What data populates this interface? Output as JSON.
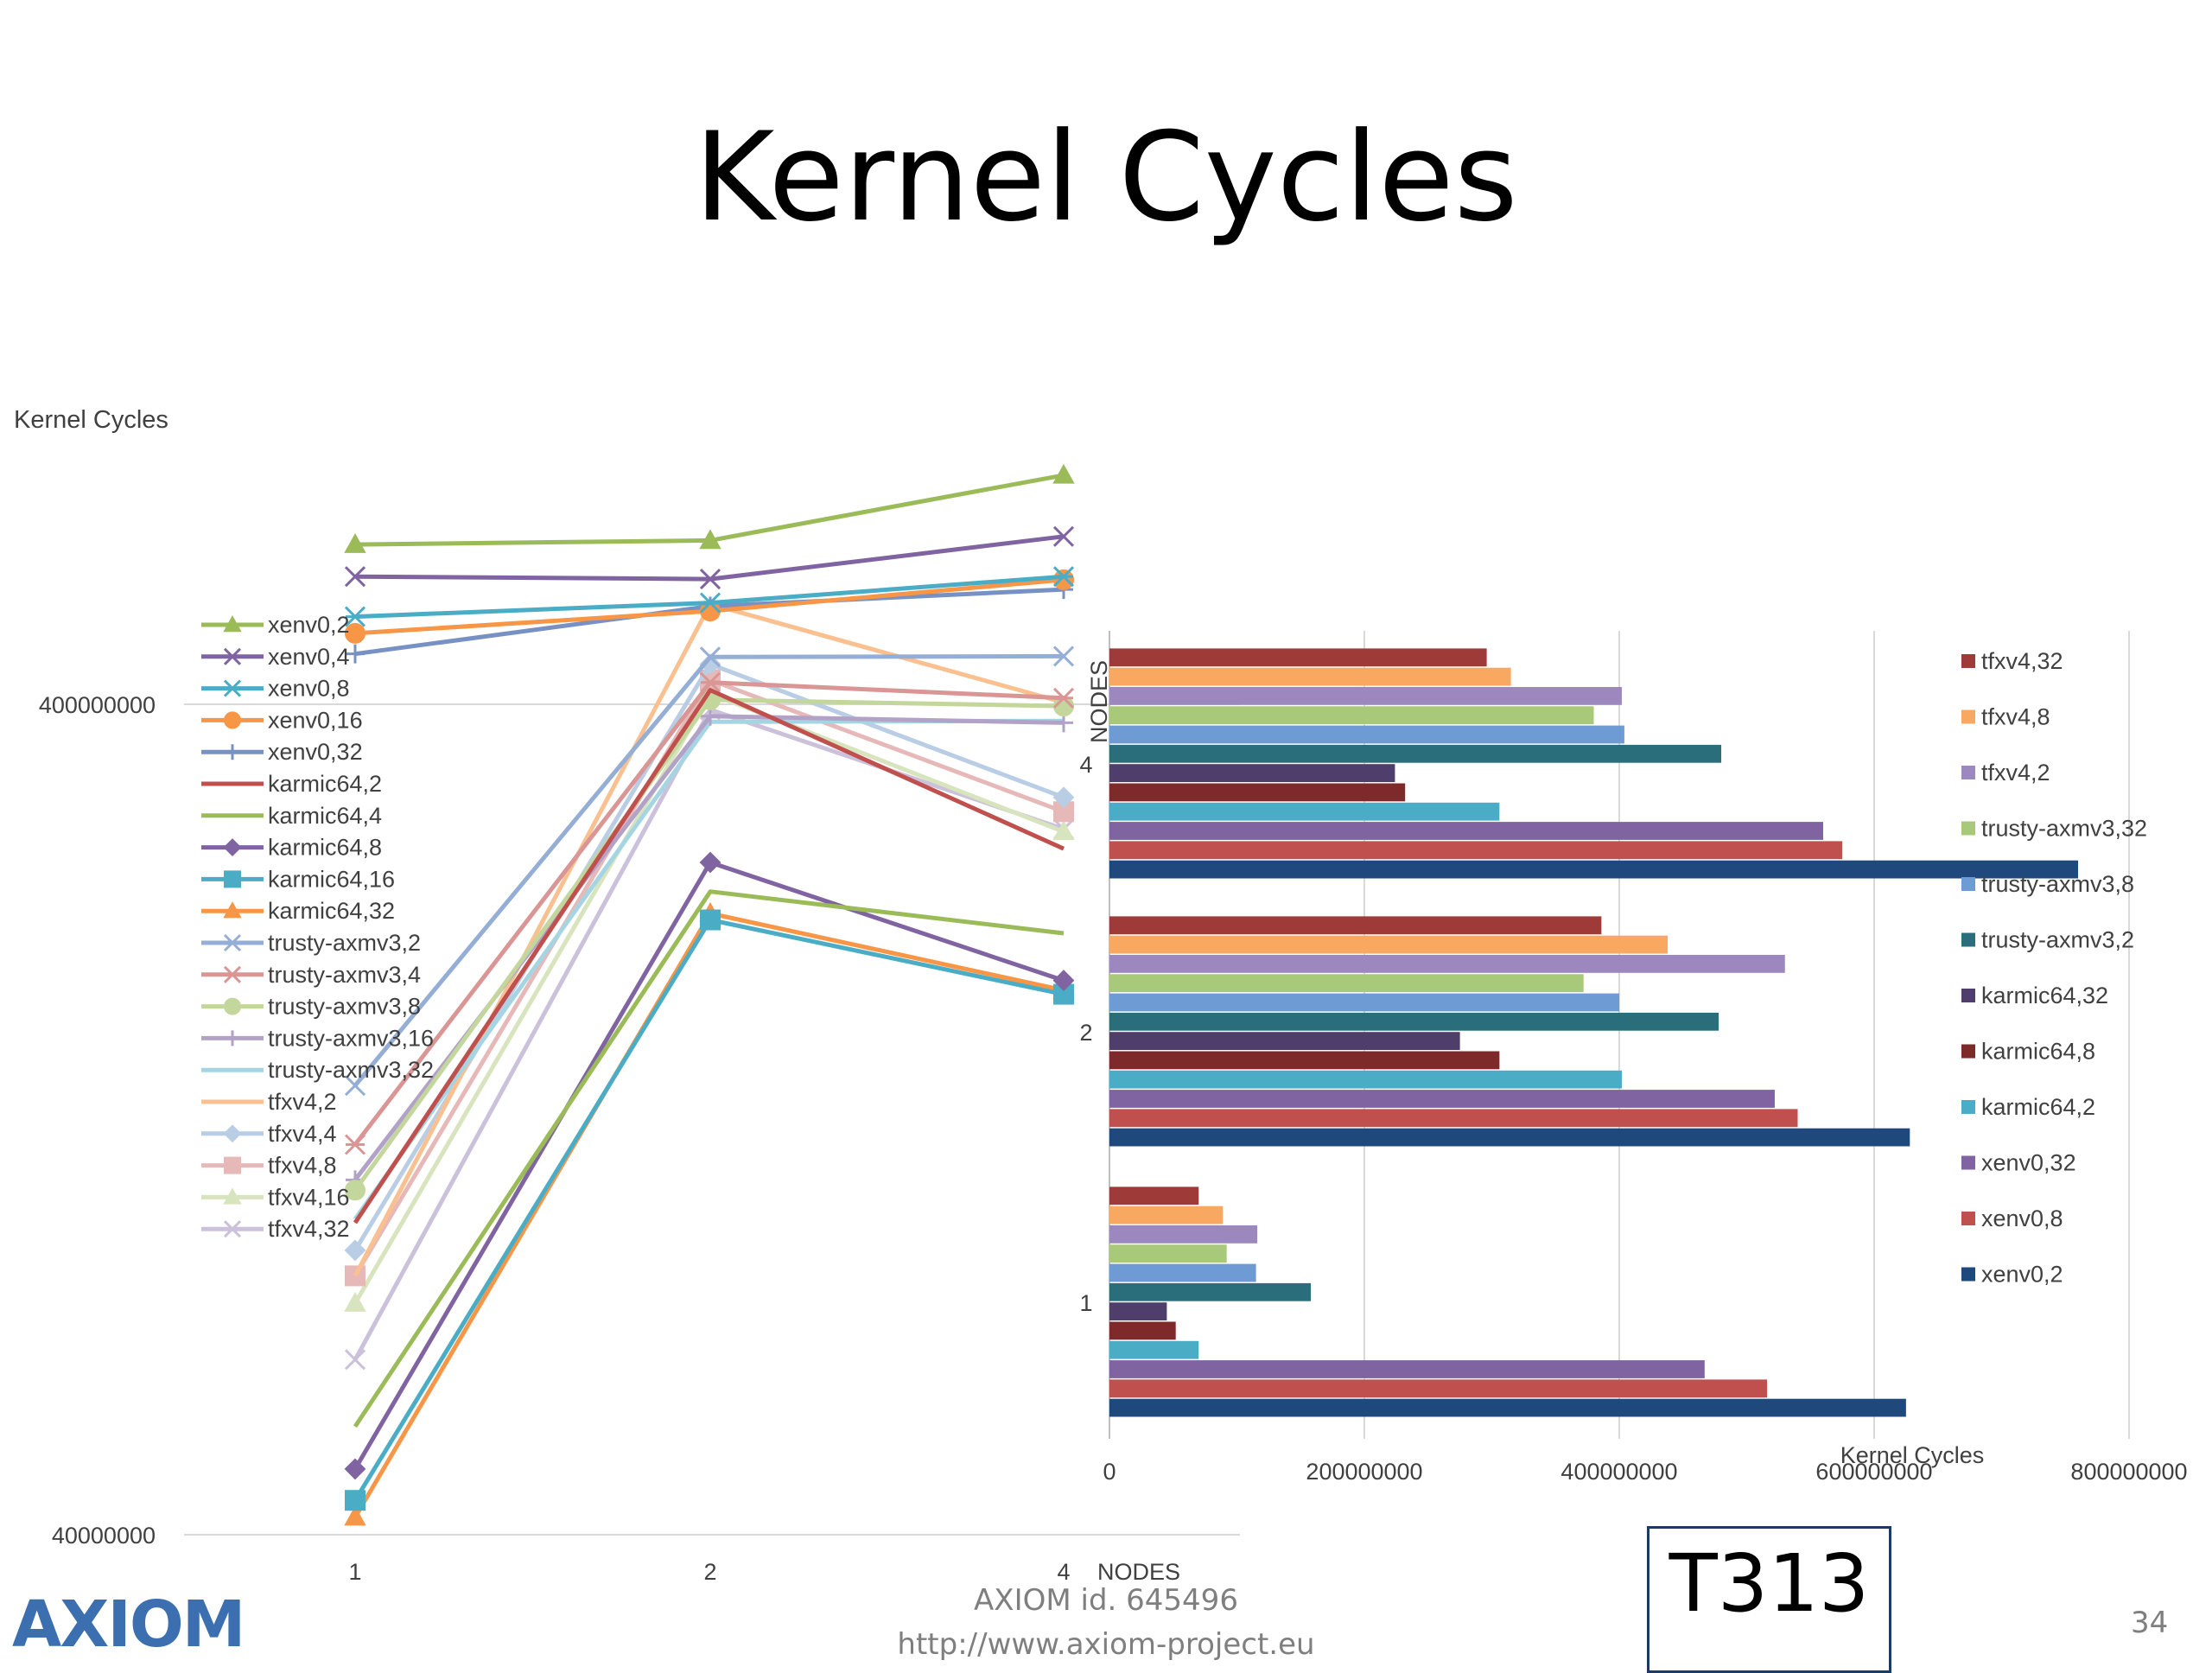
{
  "slide": {
    "title": "Kernel Cycles",
    "footer_id": "AXIOM id. 645496",
    "footer_url": "http://www.axiom-project.eu",
    "page_number": "34",
    "task_label": "T313",
    "logo_text": "AXIOM"
  },
  "chart_data": [
    {
      "type": "line",
      "title": "Kernel Cycles",
      "xlabel": "NODES",
      "ylabel": "",
      "yscale": "log",
      "ylim": [
        40000000,
        3000000000
      ],
      "y_tick_labels": [
        "40000000",
        "400000000"
      ],
      "categories": [
        "1",
        "2",
        "4"
      ],
      "grid": true,
      "legend_position": "left",
      "series": [
        {
          "name": "xenv0,2",
          "color": "#9bbb59",
          "marker": "triangle",
          "values": [
            623000000,
            630000000,
            755000000
          ]
        },
        {
          "name": "xenv0,4",
          "color": "#8064a2",
          "marker": "x",
          "values": [
            570000000,
            566000000,
            637000000
          ]
        },
        {
          "name": "xenv0,8",
          "color": "#4bacc6",
          "marker": "asterisk",
          "values": [
            510000000,
            530000000,
            570000000
          ]
        },
        {
          "name": "xenv0,16",
          "color": "#f79646",
          "marker": "circle",
          "values": [
            487000000,
            518000000,
            565000000
          ]
        },
        {
          "name": "xenv0,32",
          "color": "#7891c4",
          "marker": "plus",
          "values": [
            460000000,
            525000000,
            550000000
          ]
        },
        {
          "name": "karmic64,2",
          "color": "#c0504d",
          "marker": "none",
          "values": [
            95000000,
            416000000,
            268000000
          ]
        },
        {
          "name": "karmic64,4",
          "color": "#9bbb59",
          "marker": "none",
          "values": [
            54000000,
            238000000,
            212000000
          ]
        },
        {
          "name": "karmic64,8",
          "color": "#8064a2",
          "marker": "diamond",
          "values": [
            48000000,
            258000000,
            186000000
          ]
        },
        {
          "name": "karmic64,16",
          "color": "#4bacc6",
          "marker": "square",
          "values": [
            44000000,
            220000000,
            179000000
          ]
        },
        {
          "name": "karmic64,32",
          "color": "#f79646",
          "marker": "triangle",
          "values": [
            42000000,
            224000000,
            181000000
          ]
        },
        {
          "name": "trusty-axmv3,2",
          "color": "#95aed6",
          "marker": "x",
          "values": [
            139000000,
            456000000,
            457000000
          ]
        },
        {
          "name": "trusty-axmv3,4",
          "color": "#d99694",
          "marker": "asterisk",
          "values": [
            118000000,
            425000000,
            407000000
          ]
        },
        {
          "name": "trusty-axmv3,8",
          "color": "#c3d69b",
          "marker": "circle",
          "values": [
            104000000,
            405000000,
            398000000
          ]
        },
        {
          "name": "trusty-axmv3,16",
          "color": "#b3a2c7",
          "marker": "plus",
          "values": [
            107000000,
            387000000,
            380000000
          ]
        },
        {
          "name": "trusty-axmv3,32",
          "color": "#a5d5e2",
          "marker": "none",
          "values": [
            96000000,
            381000000,
            382000000
          ]
        },
        {
          "name": "tfxv4,2",
          "color": "#fac090",
          "marker": "none",
          "values": [
            82000000,
            528000000,
            402000000
          ]
        },
        {
          "name": "tfxv4,4",
          "color": "#b9cde5",
          "marker": "diamond",
          "values": [
            88000000,
            447000000,
            309000000
          ]
        },
        {
          "name": "tfxv4,8",
          "color": "#e6b9b8",
          "marker": "square",
          "values": [
            82000000,
            428000000,
            297000000
          ]
        },
        {
          "name": "tfxv4,16",
          "color": "#d7e4bd",
          "marker": "triangle",
          "values": [
            76000000,
            412000000,
            281000000
          ]
        },
        {
          "name": "tfxv4,32",
          "color": "#ccc1da",
          "marker": "x",
          "values": [
            65000000,
            394000000,
            283000000
          ]
        }
      ]
    },
    {
      "type": "bar",
      "orientation": "horizontal",
      "xlabel": "Kernel Cycles",
      "ylabel": "NODES",
      "xlim": [
        0,
        800000000
      ],
      "x_tick_labels": [
        "0",
        "200000000",
        "400000000",
        "600000000",
        "800000000"
      ],
      "categories": [
        "1",
        "2",
        "4"
      ],
      "grid": true,
      "legend_position": "right",
      "series": [
        {
          "name": "xenv0,2",
          "color": "#1f497d",
          "values": [
            625000000,
            628000000,
            760000000
          ]
        },
        {
          "name": "xenv0,8",
          "color": "#c0504d",
          "values": [
            516000000,
            540000000,
            575000000
          ]
        },
        {
          "name": "xenv0,32",
          "color": "#8064a2",
          "values": [
            467000000,
            522000000,
            560000000
          ]
        },
        {
          "name": "karmic64,2",
          "color": "#4bacc6",
          "values": [
            70000000,
            402000000,
            306000000
          ]
        },
        {
          "name": "karmic64,8",
          "color": "#7f2a2a",
          "values": [
            52000000,
            306000000,
            232000000
          ]
        },
        {
          "name": "karmic64,32",
          "color": "#4f3d6b",
          "values": [
            45000000,
            275000000,
            224000000
          ]
        },
        {
          "name": "trusty-axmv3,2",
          "color": "#2a6e7b",
          "values": [
            158000000,
            478000000,
            480000000
          ]
        },
        {
          "name": "trusty-axmv3,8",
          "color": "#6f9bd4",
          "values": [
            115000000,
            400000000,
            404000000
          ]
        },
        {
          "name": "trusty-axmv3,32",
          "color": "#a9c97a",
          "values": [
            92000000,
            372000000,
            380000000
          ]
        },
        {
          "name": "tfxv4,2",
          "color": "#9c88bf",
          "values": [
            116000000,
            530000000,
            402000000
          ]
        },
        {
          "name": "tfxv4,8",
          "color": "#f9a862",
          "values": [
            89000000,
            438000000,
            315000000
          ]
        },
        {
          "name": "tfxv4,32",
          "color": "#9e3a38",
          "values": [
            70000000,
            386000000,
            296000000
          ]
        }
      ]
    }
  ]
}
